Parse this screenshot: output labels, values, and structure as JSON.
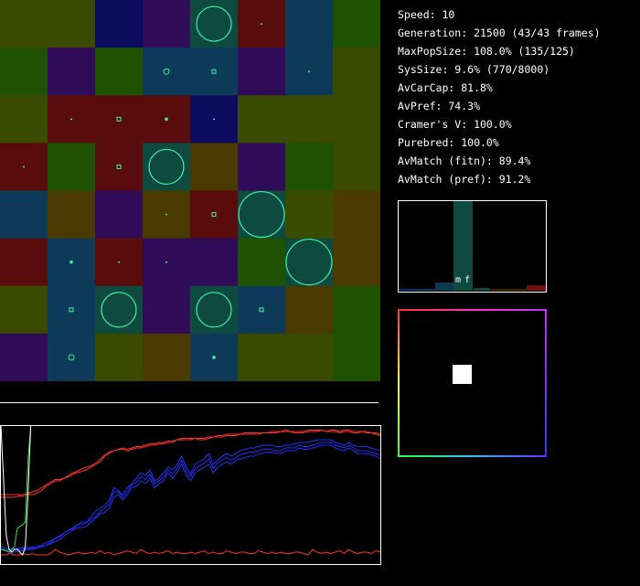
{
  "stats": {
    "speed": "Speed: 10",
    "generation": "Generation: 21500 (43/43 frames)",
    "max_pop_size": "MaxPopSize: 108.0% (135/125)",
    "sys_size": "SysSize: 9.6% (770/8000)",
    "av_car_cap": "AvCarCap: 81.8%",
    "av_pref": "AvPref: 74.3%",
    "cramers_v": "Cramer's V: 100.0%",
    "purebred": "Purebred: 100.0%",
    "av_match_fitn": "AvMatch (fitn): 89.4%",
    "av_match_pref": "AvMatch (pref): 91.2%"
  },
  "histogram": {
    "labels": [
      "m",
      "f"
    ],
    "bars": [
      {
        "value": 0.02,
        "color": "#0a2f6e"
      },
      {
        "value": 0.02,
        "color": "#103a5a"
      },
      {
        "value": 0.09,
        "color": "#0c3a4e"
      },
      {
        "value": 1.0,
        "color": "#0e4a40"
      },
      {
        "value": 0.03,
        "color": "#0e4a40"
      },
      {
        "value": 0.01,
        "color": "#553300"
      },
      {
        "value": 0.06,
        "color": "#701010"
      }
    ]
  },
  "colors": {
    "green": "#1e5200",
    "olive": "#3a4b00",
    "navy": "#0c0c5e",
    "purple": "#300c58",
    "teal": "#05505a",
    "maroon": "#580c0c",
    "blue": "#0c3a58",
    "brown": "#4a3a00",
    "circle": "#3df2a6",
    "circle_fill": "#0e4a40"
  },
  "grid": {
    "rows": 8,
    "cols": 8,
    "cells": [
      [
        "olive",
        "olive",
        "navy",
        "purple",
        "circlebg",
        "maroon",
        "blue",
        "green"
      ],
      [
        "green",
        "purple",
        "green",
        "blue",
        "blue",
        "purple",
        "blue",
        "olive"
      ],
      [
        "olive",
        "maroon",
        "maroon",
        "maroon",
        "navy",
        "olive",
        "olive",
        "olive"
      ],
      [
        "maroon",
        "green",
        "maroon",
        "circlebg",
        "brown",
        "purple",
        "green",
        "olive"
      ],
      [
        "blue",
        "brown",
        "purple",
        "brown",
        "maroon",
        "circlebg",
        "olive",
        "brown"
      ],
      [
        "maroon",
        "blue",
        "maroon",
        "purple",
        "purple",
        "green",
        "circlebg",
        "brown"
      ],
      [
        "olive",
        "blue",
        "circlebg",
        "purple",
        "circlebg",
        "blue",
        "brown",
        "green"
      ],
      [
        "purple",
        "blue",
        "olive",
        "brown",
        "blue",
        "olive",
        "olive",
        "green"
      ]
    ],
    "markers": [
      {
        "row": 0,
        "col": 4,
        "size": "large"
      },
      {
        "row": 0,
        "col": 5,
        "size": "dot"
      },
      {
        "row": 1,
        "col": 3,
        "size": "small-circle"
      },
      {
        "row": 1,
        "col": 4,
        "size": "small-square"
      },
      {
        "row": 1,
        "col": 6,
        "size": "dot"
      },
      {
        "row": 2,
        "col": 1,
        "size": "dot"
      },
      {
        "row": 2,
        "col": 2,
        "size": "small-square"
      },
      {
        "row": 2,
        "col": 3,
        "size": "small-dot"
      },
      {
        "row": 2,
        "col": 4,
        "size": "dot"
      },
      {
        "row": 3,
        "col": 0,
        "size": "dot"
      },
      {
        "row": 3,
        "col": 2,
        "size": "small-square"
      },
      {
        "row": 3,
        "col": 3,
        "size": "large"
      },
      {
        "row": 4,
        "col": 3,
        "size": "dot"
      },
      {
        "row": 4,
        "col": 4,
        "size": "small-square"
      },
      {
        "row": 4,
        "col": 5,
        "size": "xlarge"
      },
      {
        "row": 5,
        "col": 1,
        "size": "small-dot"
      },
      {
        "row": 5,
        "col": 2,
        "size": "dot"
      },
      {
        "row": 5,
        "col": 3,
        "size": "dot"
      },
      {
        "row": 5,
        "col": 6,
        "size": "xlarge"
      },
      {
        "row": 6,
        "col": 1,
        "size": "small-square"
      },
      {
        "row": 6,
        "col": 2,
        "size": "large"
      },
      {
        "row": 6,
        "col": 4,
        "size": "large"
      },
      {
        "row": 6,
        "col": 5,
        "size": "small-square"
      },
      {
        "row": 7,
        "col": 1,
        "size": "small-circle"
      },
      {
        "row": 7,
        "col": 4,
        "size": "small-dot"
      }
    ]
  },
  "chart_data": {
    "type": "line",
    "xlim": [
      0,
      84
    ],
    "ylim": [
      0,
      1
    ],
    "series": [
      {
        "color": "#ff3030",
        "values": [
          0.48,
          0.48,
          0.48,
          0.48,
          0.49,
          0.49,
          0.5,
          0.5,
          0.51,
          0.53,
          0.56,
          0.58,
          0.6,
          0.6,
          0.62,
          0.63,
          0.65,
          0.66,
          0.67,
          0.68,
          0.7,
          0.72,
          0.74,
          0.78,
          0.8,
          0.82,
          0.83,
          0.83,
          0.82,
          0.83,
          0.84,
          0.84,
          0.85,
          0.86,
          0.86,
          0.87,
          0.87,
          0.88,
          0.88,
          0.9,
          0.9,
          0.9,
          0.9,
          0.91,
          0.9,
          0.9,
          0.91,
          0.92,
          0.92,
          0.92,
          0.93,
          0.93,
          0.93,
          0.94,
          0.94,
          0.94,
          0.94,
          0.94,
          0.95,
          0.95,
          0.95,
          0.95,
          0.96,
          0.96,
          0.96,
          0.95,
          0.95,
          0.95,
          0.96,
          0.96,
          0.96,
          0.97,
          0.96,
          0.96,
          0.96,
          0.95,
          0.96,
          0.96,
          0.95,
          0.95,
          0.96,
          0.95,
          0.95,
          0.94,
          0.93
        ]
      },
      {
        "color": "#ff3030",
        "values": [
          0.5,
          0.5,
          0.5,
          0.5,
          0.5,
          0.5,
          0.51,
          0.52,
          0.53,
          0.55,
          0.57,
          0.59,
          0.61,
          0.61,
          0.62,
          0.64,
          0.66,
          0.67,
          0.69,
          0.7,
          0.71,
          0.73,
          0.76,
          0.79,
          0.81,
          0.82,
          0.83,
          0.84,
          0.83,
          0.84,
          0.85,
          0.85,
          0.86,
          0.87,
          0.87,
          0.88,
          0.88,
          0.89,
          0.89,
          0.9,
          0.91,
          0.91,
          0.91,
          0.91,
          0.91,
          0.91,
          0.92,
          0.92,
          0.93,
          0.93,
          0.94,
          0.94,
          0.94,
          0.94,
          0.95,
          0.95,
          0.95,
          0.95,
          0.95,
          0.95,
          0.96,
          0.96,
          0.96,
          0.97,
          0.96,
          0.96,
          0.96,
          0.96,
          0.97,
          0.97,
          0.97,
          0.97,
          0.96,
          0.97,
          0.97,
          0.96,
          0.97,
          0.97,
          0.96,
          0.96,
          0.96,
          0.96,
          0.95,
          0.95,
          0.94
        ]
      },
      {
        "color": "#ff3030",
        "values": [
          0.06,
          0.06,
          0.07,
          0.06,
          0.06,
          0.07,
          0.06,
          0.07,
          0.06,
          0.06,
          0.06,
          0.07,
          0.1,
          0.08,
          0.07,
          0.06,
          0.07,
          0.08,
          0.07,
          0.07,
          0.08,
          0.07,
          0.09,
          0.07,
          0.08,
          0.06,
          0.07,
          0.08,
          0.09,
          0.08,
          0.07,
          0.1,
          0.08,
          0.07,
          0.08,
          0.07,
          0.08,
          0.09,
          0.07,
          0.08,
          0.07,
          0.07,
          0.08,
          0.07,
          0.08,
          0.09,
          0.07,
          0.08,
          0.07,
          0.07,
          0.09,
          0.08,
          0.07,
          0.08,
          0.08,
          0.07,
          0.07,
          0.09,
          0.08,
          0.07,
          0.08,
          0.07,
          0.08,
          0.07,
          0.07,
          0.08,
          0.08,
          0.07,
          0.06,
          0.1,
          0.08,
          0.07,
          0.08,
          0.07,
          0.08,
          0.09,
          0.07,
          0.1,
          0.08,
          0.07,
          0.08,
          0.08,
          0.07,
          0.09,
          0.08
        ]
      },
      {
        "color": "#2030ff",
        "values": [
          0.1,
          0.09,
          0.1,
          0.11,
          0.1,
          0.09,
          0.1,
          0.11,
          0.11,
          0.12,
          0.13,
          0.15,
          0.18,
          0.2,
          0.22,
          0.24,
          0.25,
          0.28,
          0.3,
          0.3,
          0.34,
          0.38,
          0.4,
          0.42,
          0.46,
          0.55,
          0.53,
          0.5,
          0.55,
          0.58,
          0.62,
          0.66,
          0.64,
          0.68,
          0.6,
          0.62,
          0.66,
          0.7,
          0.68,
          0.72,
          0.78,
          0.7,
          0.65,
          0.72,
          0.74,
          0.76,
          0.8,
          0.72,
          0.75,
          0.78,
          0.8,
          0.78,
          0.8,
          0.82,
          0.83,
          0.84,
          0.84,
          0.85,
          0.86,
          0.86,
          0.86,
          0.85,
          0.85,
          0.86,
          0.86,
          0.87,
          0.88,
          0.88,
          0.88,
          0.89,
          0.9,
          0.9,
          0.9,
          0.9,
          0.88,
          0.87,
          0.86,
          0.88,
          0.86,
          0.85,
          0.85,
          0.85,
          0.84,
          0.83,
          0.82
        ]
      },
      {
        "color": "#2030ff",
        "values": [
          0.1,
          0.09,
          0.08,
          0.08,
          0.09,
          0.1,
          0.1,
          0.1,
          0.11,
          0.12,
          0.13,
          0.14,
          0.16,
          0.17,
          0.2,
          0.22,
          0.24,
          0.26,
          0.26,
          0.27,
          0.3,
          0.33,
          0.36,
          0.37,
          0.4,
          0.48,
          0.5,
          0.46,
          0.5,
          0.55,
          0.56,
          0.6,
          0.58,
          0.62,
          0.55,
          0.58,
          0.6,
          0.66,
          0.62,
          0.66,
          0.72,
          0.64,
          0.6,
          0.66,
          0.68,
          0.7,
          0.72,
          0.66,
          0.7,
          0.72,
          0.74,
          0.72,
          0.75,
          0.76,
          0.77,
          0.78,
          0.78,
          0.8,
          0.8,
          0.81,
          0.81,
          0.8,
          0.8,
          0.82,
          0.82,
          0.82,
          0.84,
          0.83,
          0.83,
          0.84,
          0.85,
          0.86,
          0.86,
          0.86,
          0.84,
          0.83,
          0.82,
          0.84,
          0.82,
          0.8,
          0.8,
          0.8,
          0.79,
          0.78,
          0.76
        ]
      },
      {
        "color": "#2030ff",
        "values": [
          0.12,
          0.11,
          0.1,
          0.1,
          0.11,
          0.11,
          0.11,
          0.12,
          0.12,
          0.13,
          0.15,
          0.16,
          0.18,
          0.19,
          0.22,
          0.24,
          0.26,
          0.28,
          0.28,
          0.3,
          0.32,
          0.34,
          0.38,
          0.4,
          0.43,
          0.52,
          0.52,
          0.48,
          0.52,
          0.57,
          0.59,
          0.63,
          0.61,
          0.65,
          0.58,
          0.6,
          0.63,
          0.68,
          0.65,
          0.69,
          0.75,
          0.67,
          0.63,
          0.69,
          0.71,
          0.73,
          0.76,
          0.69,
          0.73,
          0.75,
          0.77,
          0.75,
          0.77,
          0.79,
          0.8,
          0.81,
          0.81,
          0.82,
          0.83,
          0.83,
          0.83,
          0.82,
          0.82,
          0.84,
          0.84,
          0.84,
          0.86,
          0.85,
          0.85,
          0.86,
          0.87,
          0.88,
          0.88,
          0.88,
          0.86,
          0.85,
          0.84,
          0.86,
          0.84,
          0.82,
          0.82,
          0.82,
          0.81,
          0.8,
          0.79
        ]
      },
      {
        "color": "#30e030",
        "values": [
          0.1,
          0.1,
          0.09,
          0.08,
          0.1,
          0.12,
          0.25,
          0.27,
          0.28,
          0.3,
          0.75,
          1.0
        ]
      },
      {
        "color": "#ffffff",
        "values": [
          1.0,
          0.6,
          0.2,
          0.1,
          0.08,
          0.1,
          0.1,
          0.08,
          0.06,
          0.12,
          0.5,
          1.0
        ]
      }
    ]
  }
}
